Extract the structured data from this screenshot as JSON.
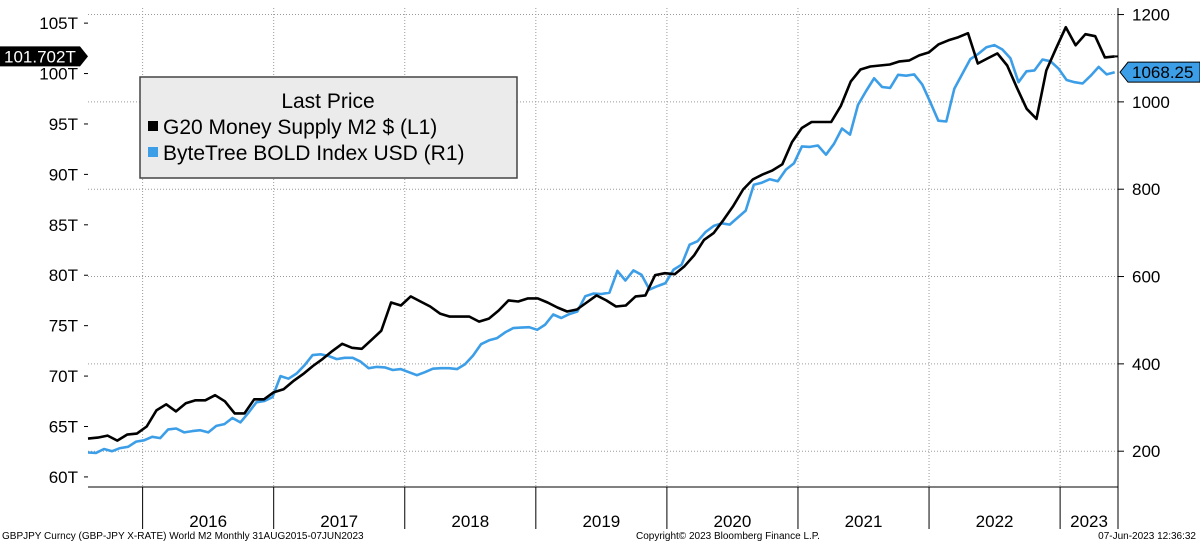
{
  "chart_data": {
    "type": "line",
    "legend": {
      "title": "Last Price",
      "placement": "top-left"
    },
    "series": [
      {
        "name": "G20 Money Supply M2 $  (L1)",
        "axis": "left",
        "color": "#000000",
        "x_start": "2015-08",
        "values": [
          63.8,
          63.9,
          64.1,
          63.6,
          64.2,
          64.3,
          65.0,
          66.6,
          67.2,
          66.5,
          67.3,
          67.6,
          67.6,
          68.1,
          67.5,
          66.3,
          66.3,
          67.7,
          67.7,
          68.4,
          68.7,
          69.5,
          70.2,
          71.0,
          71.7,
          72.5,
          73.2,
          72.8,
          72.7,
          73.6,
          74.5,
          77.3,
          77.0,
          77.9,
          77.4,
          76.9,
          76.2,
          75.9,
          75.9,
          75.9,
          75.4,
          75.7,
          76.5,
          77.5,
          77.4,
          77.7,
          77.7,
          77.3,
          76.8,
          76.4,
          76.6,
          77.3,
          78.0,
          77.5,
          76.9,
          77.0,
          77.9,
          78.0,
          80.0,
          80.2,
          80.1,
          80.9,
          82.0,
          83.5,
          84.2,
          85.5,
          86.9,
          88.5,
          89.5,
          90.0,
          90.4,
          91.0,
          93.2,
          94.6,
          95.2,
          95.2,
          95.2,
          96.8,
          99.2,
          100.4,
          100.7,
          100.8,
          100.9,
          101.2,
          101.3,
          101.8,
          102.1,
          102.9,
          103.3,
          103.6,
          104.0,
          101.0,
          101.5,
          102.0,
          100.8,
          98.6,
          96.5,
          95.5,
          100.3,
          102.5,
          104.6,
          102.8,
          103.9,
          103.7,
          101.6,
          101.7
        ],
        "last_label": "101.702T"
      },
      {
        "name": "ByteTree BOLD Index USD  (R1)",
        "axis": "right",
        "color": "#3d9ee8",
        "x_start": "2015-08",
        "values": [
          197,
          196,
          205,
          200,
          207,
          210,
          222,
          225,
          233,
          230,
          250,
          252,
          243,
          246,
          248,
          243,
          258,
          262,
          276,
          266,
          288,
          312,
          315,
          324,
          372,
          366,
          378,
          397,
          420,
          422,
          418,
          411,
          414,
          414,
          405,
          390,
          393,
          392,
          386,
          388,
          381,
          374,
          381,
          389,
          390,
          390,
          388,
          399,
          419,
          445,
          454,
          459,
          472,
          482,
          483,
          484,
          478,
          490,
          513,
          505,
          514,
          520,
          555,
          561,
          560,
          563,
          613,
          591,
          614,
          604,
          570,
          578,
          585,
          616,
          627,
          673,
          681,
          702,
          716,
          722,
          719,
          735,
          751,
          810,
          815,
          823,
          818,
          845,
          859,
          898,
          897,
          900,
          879,
          904,
          939,
          925,
          993,
          1025,
          1054,
          1034,
          1032,
          1062,
          1060,
          1063,
          1040,
          1000,
          957,
          955,
          1030,
          1064,
          1098,
          1110,
          1125,
          1130,
          1120,
          1100,
          1045,
          1070,
          1072,
          1097,
          1093,
          1076,
          1050,
          1045,
          1042,
          1060,
          1080,
          1063,
          1068
        ]
      }
    ],
    "x_range": [
      "2015-08",
      "2023-06"
    ],
    "left_axis": {
      "ylim": [
        59,
        106.5
      ],
      "ticks": [
        "60T",
        "65T",
        "70T",
        "75T",
        "80T",
        "85T",
        "90T",
        "95T",
        "100T",
        "105T"
      ]
    },
    "right_axis": {
      "ylim": [
        118,
        1215
      ],
      "ticks": [
        "200",
        "400",
        "600",
        "800",
        "1000",
        "1200"
      ],
      "last_label": "1068.25"
    },
    "x_ticks": [
      "2016",
      "2017",
      "2018",
      "2019",
      "2020",
      "2021",
      "2022",
      "2023"
    ],
    "grid": true
  },
  "footer": {
    "left": "GBPJPY Curncy (GBP-JPY X-RATE) World M2  Monthly 31AUG2015-07JUN2023",
    "center": "Copyright© 2023 Bloomberg Finance L.P.",
    "right": "07-Jun-2023 12:36:32"
  }
}
